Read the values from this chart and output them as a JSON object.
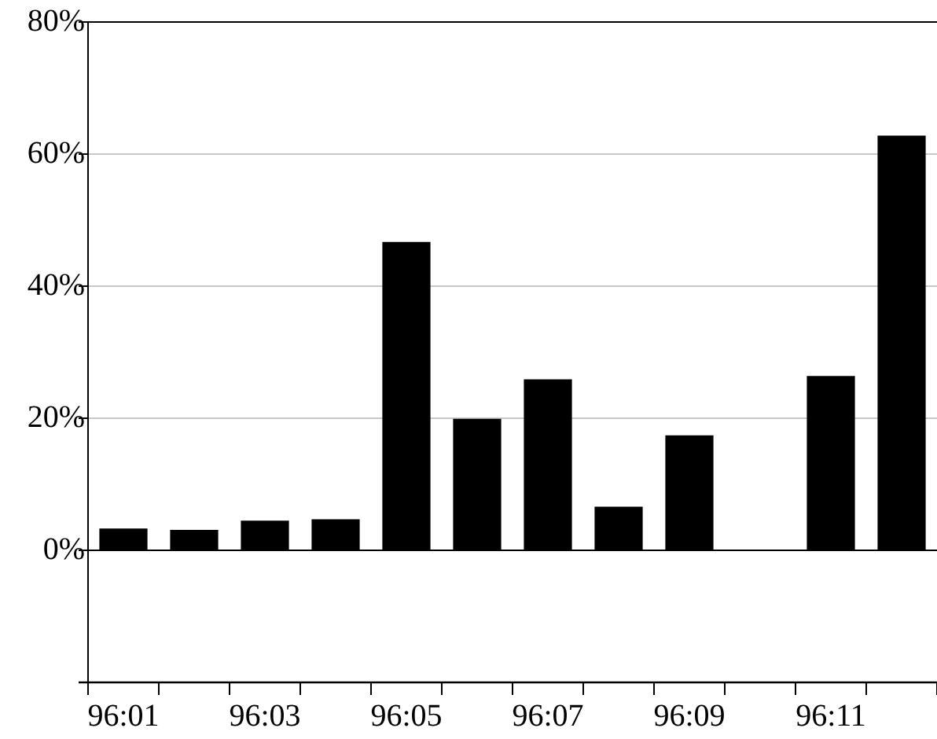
{
  "chart_data": {
    "type": "bar",
    "categories": [
      "96:01",
      null,
      "96:03",
      null,
      "96:05",
      null,
      "96:07",
      null,
      "96:09",
      null,
      "96:11",
      null
    ],
    "values": [
      3.3,
      3.1,
      4.5,
      4.7,
      46.7,
      19.9,
      25.9,
      6.6,
      17.4,
      0.1,
      26.4,
      62.8
    ],
    "color": "#000000",
    "ylim": [
      -20,
      80
    ],
    "yticks": [
      {
        "value": -20,
        "label": null
      },
      {
        "value": 0,
        "label": "0%"
      },
      {
        "value": 20,
        "label": "20%"
      },
      {
        "value": 40,
        "label": "40%"
      },
      {
        "value": 60,
        "label": "60%"
      },
      {
        "value": 80,
        "label": "80%"
      }
    ],
    "grid": "y",
    "legend": false
  }
}
